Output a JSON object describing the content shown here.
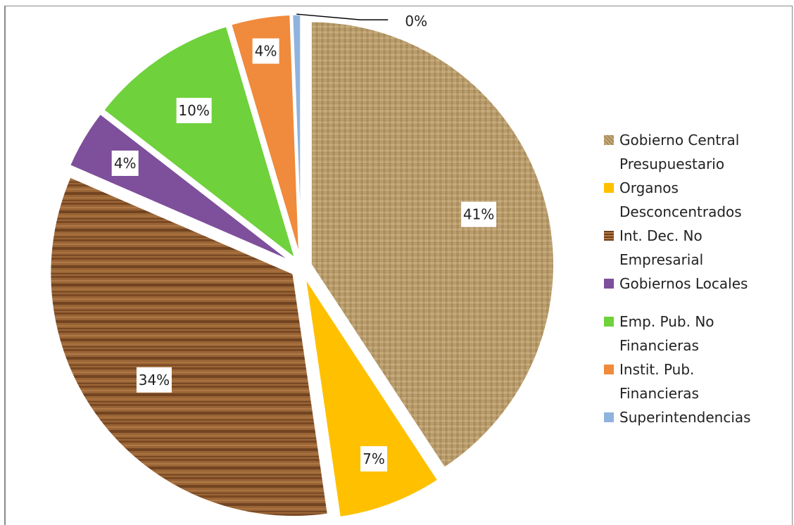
{
  "title": "",
  "chart_data": {
    "type": "pie",
    "title": "",
    "categories": [
      "Gobierno Central Presupuestario",
      "Organos Desconcentrados",
      "Int. Dec. No Empresarial",
      "Gobiernos Locales",
      "Emp. Pub. No Financieras",
      "Instit. Pub. Financieras",
      "Superintendencias"
    ],
    "values": [
      41,
      7,
      34,
      4,
      10,
      4,
      0
    ],
    "data_labels": [
      "41%",
      "7%",
      "34%",
      "4%",
      "10%",
      "4%",
      "0%"
    ],
    "legend_placement": "right",
    "legend_lines": [
      [
        "Gobierno Central",
        "Presupuestario"
      ],
      [
        "Organos",
        "Desconcentrados"
      ],
      [
        "Int. Dec. No",
        "Empresarial"
      ],
      [
        "Gobiernos Locales"
      ],
      [
        "Emp. Pub. No",
        "Financieras"
      ],
      [
        "Instit. Pub.",
        "Financieras"
      ],
      [
        "Superintendencias"
      ]
    ],
    "colors": [
      "#b89b6a",
      "#ffc000",
      "#8f5a2d",
      "#7e4f9b",
      "#6fd13c",
      "#f08a3c",
      "#8fb3de"
    ]
  }
}
